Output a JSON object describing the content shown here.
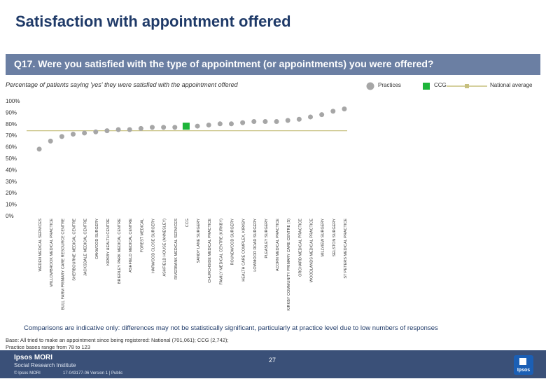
{
  "page": {
    "title": "Satisfaction with appointment offered",
    "question": "Q17. Were you satisfied with the type of appointment (or appointments) you were offered?",
    "subtitle": "Percentage of patients saying 'yes' they were satisfied with the appointment offered",
    "note": "Comparisons are indicative only: differences may not be statistically significant, particularly at practice level due to low numbers of responses",
    "base_line1": "Base: All tried to make an appointment since being registered: National (701,061); CCG (2,742);",
    "base_line2": "Practice bases range from 78 to 123",
    "page_number": "27",
    "brand_name": "Ipsos MORI",
    "brand_sub": "Social Research Institute",
    "copyright": "© Ipsos MORI",
    "job_ref": "17-043177-06 Version 1 | Public",
    "logo_text": "Ipsos"
  },
  "legend": {
    "practices": "Practices",
    "ccg": "CCG",
    "national": "National average"
  },
  "colors": {
    "practice": "#a6a6a6",
    "ccg": "#1eb53a",
    "national": "#c7c07f",
    "question_bar": "#6b7fa3",
    "title": "#1f3a68",
    "footer": "#3a5078"
  },
  "chart_data": {
    "type": "scatter",
    "title": "Percentage of patients saying 'yes' they were satisfied with the appointment offered",
    "xlabel": "",
    "ylabel": "",
    "ylim": [
      0,
      100
    ],
    "y_ticks": [
      "0%",
      "10%",
      "20%",
      "30%",
      "40%",
      "50%",
      "60%",
      "70%",
      "80%",
      "90%",
      "100%"
    ],
    "national_average": 74,
    "categories": [
      "WEDEN MEDICAL SERVICES",
      "WILLOWBROOK MEDICAL PRACTICE",
      "BULL FARM PRIMARY CARE RESOURCE CENTRE",
      "SHERBOURNE MEDICAL CENTRE",
      "JACKSDALE MEDICAL CENTRE",
      "OAKWOOD SURGERY",
      "KIRKBY HEALTH CENTRE",
      "BRIERLEY PARK MEDICAL CENTRE",
      "ASHFIELD MEDICAL CENTRE",
      "FOREST MEDICAL",
      "HARWOOD CLOSE SURGERY",
      "ASHFIELD HOUSE (ANNESLEY)",
      "RIVERBANK MEDICAL SERVICES",
      "CCG",
      "SANDY LANE SURGERY",
      "CHURCHSIDE MEDICAL PRACTICE",
      "FAMILY MEDICAL CENTRE (KIRKBY)",
      "ROUNDWOOD SURGERY",
      "HEALTH CARE COMPLEX, KIRKBY",
      "LOWMOOR ROAD SURGERY",
      "PLEASLEY SURGERY",
      "ACORN MEDICAL PRACTICE",
      "KIRKBY COMMUNITY PRIMARY CARE CENTRE (S)",
      "ORCHARD MEDICAL PRACTICE",
      "WOODLANDS MEDICAL PRACTICE",
      "MILLVIEW SURGERY",
      "SELSTON SURGERY",
      "ST PETERS MEDICAL PRACTICE"
    ],
    "values": [
      58,
      65,
      69,
      71,
      72,
      73,
      74,
      75,
      75,
      76,
      77,
      77,
      77,
      78,
      78,
      79,
      80,
      80,
      81,
      82,
      82,
      82,
      83,
      84,
      86,
      88,
      91,
      93
    ],
    "ccg_index": 13
  }
}
